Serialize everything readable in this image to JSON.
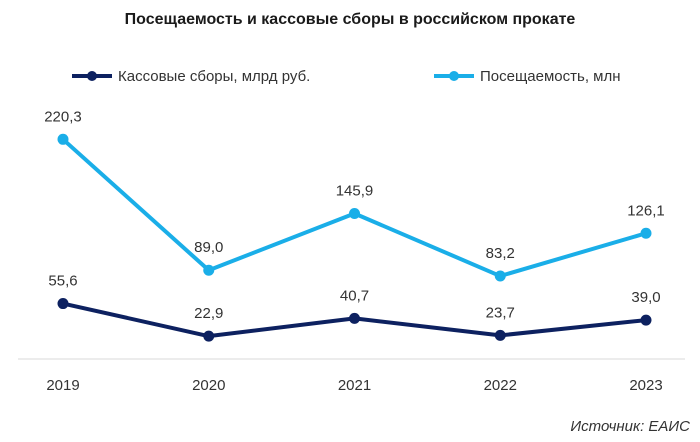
{
  "chart_data": {
    "type": "line",
    "title": "Посещаемость и кассовые сборы в российском прокате",
    "categories": [
      "2019",
      "2020",
      "2021",
      "2022",
      "2023"
    ],
    "series": [
      {
        "name": "Кассовые сборы, млрд руб.",
        "values": [
          55.6,
          22.9,
          40.7,
          23.7,
          39.0
        ],
        "labels": [
          "55,6",
          "22,9",
          "40,7",
          "23,7",
          "39,0"
        ],
        "color": "#0d2160"
      },
      {
        "name": "Посещаемость, млн",
        "values": [
          220.3,
          89.0,
          145.9,
          83.2,
          126.1
        ],
        "labels": [
          "220,3",
          "89,0",
          "145,9",
          "83,2",
          "126,1"
        ],
        "color": "#1aaee8"
      }
    ],
    "ylim": [
      0,
      360
    ],
    "grid": false,
    "legend_position": "top"
  },
  "source_note": "Источник: ЕАИС"
}
